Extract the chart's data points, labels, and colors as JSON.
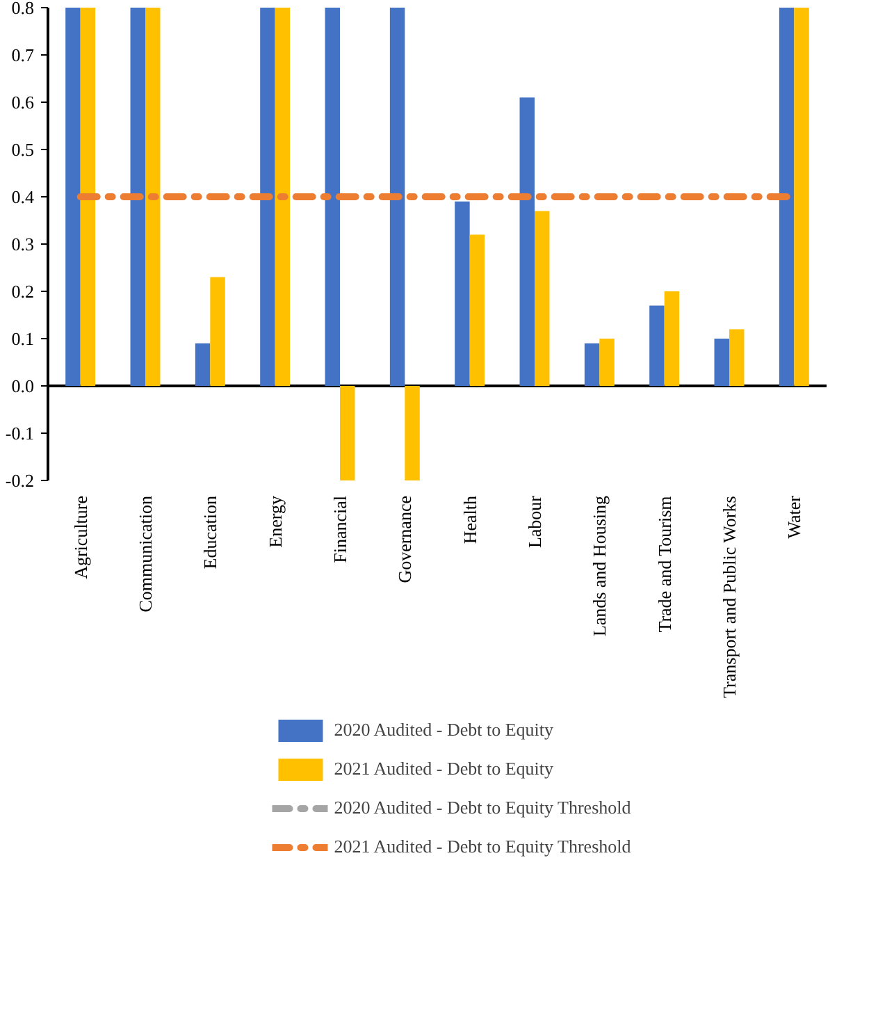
{
  "chart_data": {
    "type": "bar",
    "categories": [
      "Agriculture",
      "Communication",
      "Education",
      "Energy",
      "Financial",
      "Governance",
      "Health",
      "Labour",
      "Lands and Housing",
      "Trade and Tourism",
      "Transport and Public Works",
      "Water"
    ],
    "series": [
      {
        "name": "2020 Audited - Debt to Equity",
        "color": "#4472c4",
        "values": [
          0.8,
          0.8,
          0.09,
          0.8,
          0.8,
          0.8,
          0.39,
          0.61,
          0.09,
          0.17,
          0.1,
          0.8
        ]
      },
      {
        "name": "2021 Audited - Debt to Equity",
        "color": "#ffc000",
        "values": [
          0.8,
          0.8,
          0.23,
          0.8,
          -0.2,
          -0.2,
          0.32,
          0.37,
          0.1,
          0.2,
          0.12,
          0.8
        ]
      },
      {
        "name": "2020 Audited - Debt to Equity Threshold",
        "type": "line",
        "line_style": "dashed",
        "color": "#a5a5a5",
        "values": [
          null,
          null,
          null,
          null,
          null,
          null,
          null,
          null,
          null,
          null,
          null,
          null
        ]
      },
      {
        "name": "2021 Audited - Debt to Equity Threshold",
        "type": "line",
        "line_style": "dashed",
        "color": "#ed7d31",
        "values": [
          0.4,
          0.4,
          0.4,
          0.4,
          0.4,
          0.4,
          0.4,
          0.4,
          0.4,
          0.4,
          0.4,
          0.4
        ]
      }
    ],
    "ylim": [
      -0.2,
      0.8
    ],
    "yticks": [
      {
        "value": -0.2,
        "label": "-0.2"
      },
      {
        "value": -0.1,
        "label": "-0.1"
      },
      {
        "value": 0,
        "label": "0.0"
      },
      {
        "value": 0.1,
        "label": "0.1"
      },
      {
        "value": 0.2,
        "label": "0.2"
      },
      {
        "value": 0.3,
        "label": "0.3"
      },
      {
        "value": 0.4,
        "label": "0.4"
      },
      {
        "value": 0.5,
        "label": "0.5"
      },
      {
        "value": 0.6,
        "label": "0.6"
      },
      {
        "value": 0.7,
        "label": "0.7"
      },
      {
        "value": 0.8,
        "label": "0.8"
      }
    ],
    "legend": "bottom"
  }
}
